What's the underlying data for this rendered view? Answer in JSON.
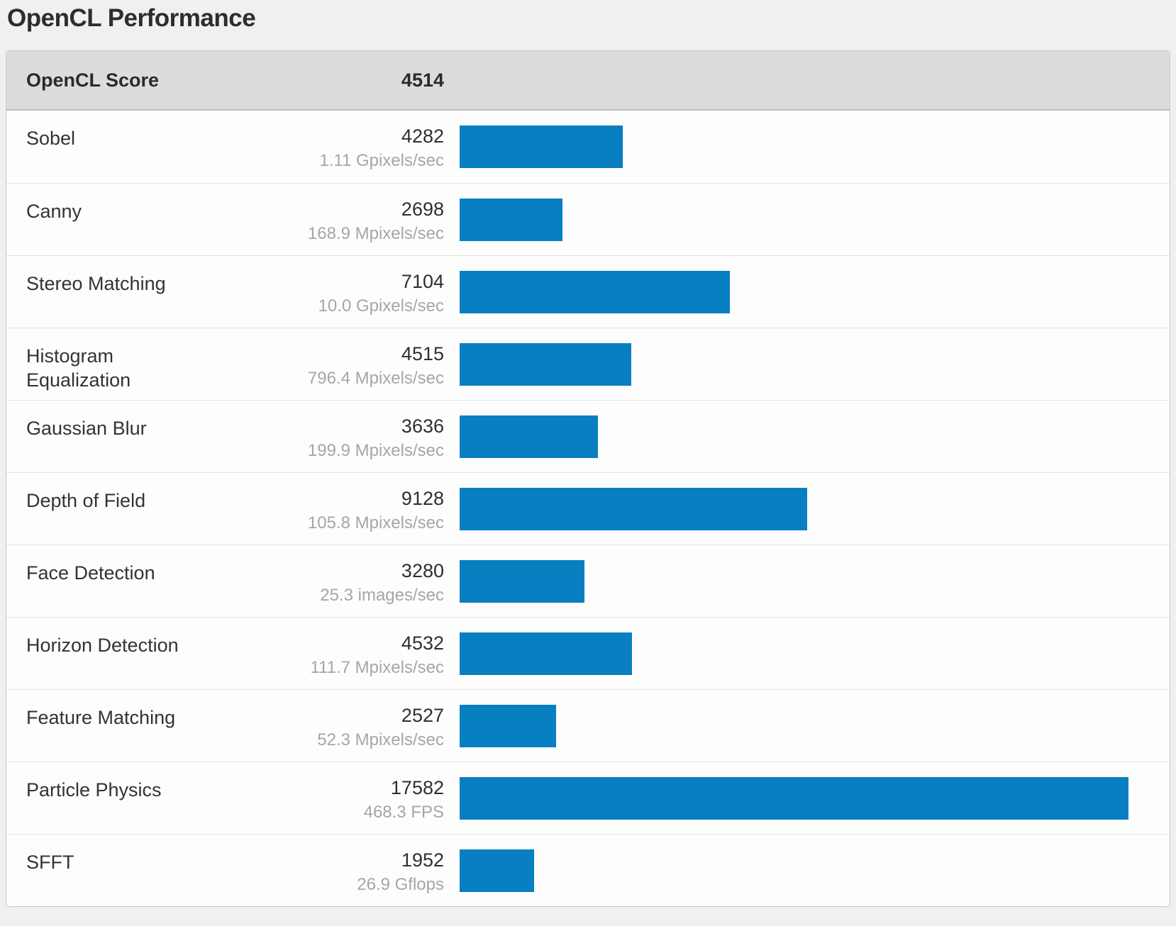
{
  "page": {
    "title": "OpenCL Performance",
    "background_color": "#f0f0f0",
    "accent_color": "#077fc0"
  },
  "chart_data": {
    "type": "bar",
    "title": "OpenCL Performance",
    "orientation": "horizontal",
    "bar_color": "#077fc0",
    "axis_max_score": 17582,
    "grid": false,
    "legend": false,
    "header": {
      "label": "OpenCL Score",
      "value": "4514"
    },
    "categories": [
      "Sobel",
      "Canny",
      "Stereo Matching",
      "Histogram Equalization",
      "Gaussian Blur",
      "Depth of Field",
      "Face Detection",
      "Horizon Detection",
      "Feature Matching",
      "Particle Physics",
      "SFFT"
    ],
    "values": [
      4282,
      2698,
      7104,
      4515,
      3636,
      9128,
      3280,
      4532,
      2527,
      17582,
      1952
    ],
    "rows": [
      {
        "label": "Sobel",
        "score": "4282",
        "rate": "1.11 Gpixels/sec"
      },
      {
        "label": "Canny",
        "score": "2698",
        "rate": "168.9 Mpixels/sec"
      },
      {
        "label": "Stereo Matching",
        "score": "7104",
        "rate": "10.0 Gpixels/sec"
      },
      {
        "label": "Histogram Equalization",
        "score": "4515",
        "rate": "796.4 Mpixels/sec"
      },
      {
        "label": "Gaussian Blur",
        "score": "3636",
        "rate": "199.9 Mpixels/sec"
      },
      {
        "label": "Depth of Field",
        "score": "9128",
        "rate": "105.8 Mpixels/sec"
      },
      {
        "label": "Face Detection",
        "score": "3280",
        "rate": "25.3 images/sec"
      },
      {
        "label": "Horizon Detection",
        "score": "4532",
        "rate": "111.7 Mpixels/sec"
      },
      {
        "label": "Feature Matching",
        "score": "2527",
        "rate": "52.3 Mpixels/sec"
      },
      {
        "label": "Particle Physics",
        "score": "17582",
        "rate": "468.3 FPS"
      },
      {
        "label": "SFFT",
        "score": "1952",
        "rate": "26.9 Gflops"
      }
    ]
  }
}
